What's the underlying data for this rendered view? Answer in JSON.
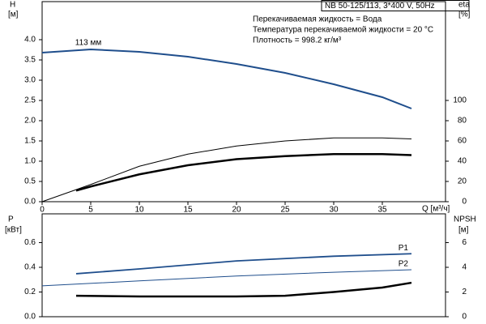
{
  "chart_data": [
    {
      "type": "line",
      "title": "NB 50-125/113, 3*400 V, 50Hz",
      "annotations": [
        "Перекачиваемая жидкость = Вода",
        "Температура перекачиваемой жидкости = 20 °C",
        "Плотность = 998.2 кг/м³"
      ],
      "ylabel": "H",
      "yunit": "[м]",
      "y2label": "eta",
      "y2unit": "[%]",
      "xlabel": "Q [м³/ч]",
      "xlim": [
        0,
        41.5
      ],
      "xticks": [
        0,
        5,
        10,
        15,
        20,
        25,
        30,
        35
      ],
      "ylim": [
        0,
        4.94
      ],
      "yticks": [
        {
          "value": 0,
          "label": "0.0"
        },
        0.5,
        {
          "value": 1,
          "label": "1.0"
        },
        1.5,
        {
          "value": 2,
          "label": "2.0"
        },
        2.5,
        {
          "value": 3,
          "label": "3.0"
        },
        3.5,
        {
          "value": 4,
          "label": "4.0"
        }
      ],
      "y2lim": [
        0,
        197.6
      ],
      "y2ticks": [
        0,
        20,
        40,
        60,
        80,
        100
      ],
      "grid": false,
      "series": [
        {
          "name": "113 мм",
          "color": "#1f4e8c",
          "width": 2,
          "x": [
            0,
            5,
            10,
            15,
            20,
            25,
            30,
            35,
            38
          ],
          "values": [
            3.68,
            3.76,
            3.7,
            3.58,
            3.4,
            3.18,
            2.9,
            2.58,
            2.3
          ]
        },
        {
          "color": "#000000",
          "width": 1,
          "axis": "y2",
          "x": [
            0,
            5,
            10,
            15,
            20,
            25,
            30,
            35,
            38
          ],
          "values": [
            0,
            17,
            35,
            47,
            55,
            60,
            63,
            63,
            62
          ]
        },
        {
          "color": "#000000",
          "width": 2.5,
          "axis": "y2",
          "x": [
            3.5,
            5,
            10,
            15,
            20,
            25,
            30,
            35,
            38
          ],
          "values": [
            11,
            15,
            27,
            36,
            42,
            45,
            47,
            47,
            46
          ]
        }
      ]
    },
    {
      "type": "line",
      "ylabel": "P",
      "yunit": "[кВт]",
      "y2label": "NPSH",
      "y2unit": "[м]",
      "xlim": [
        0,
        41.5
      ],
      "ylim": [
        0,
        0.833
      ],
      "yticks": [
        {
          "value": 0,
          "label": "0.0"
        },
        0.2,
        0.4,
        0.6
      ],
      "y2lim": [
        0,
        8.33
      ],
      "y2ticks": [
        0,
        2,
        4,
        6
      ],
      "grid": false,
      "series": [
        {
          "name": "P1",
          "color": "#1f4e8c",
          "width": 1.8,
          "x": [
            3.5,
            10,
            20,
            30,
            38
          ],
          "values": [
            0.348,
            0.387,
            0.452,
            0.49,
            0.51
          ]
        },
        {
          "name": "P2",
          "color": "#1f4e8c",
          "width": 1,
          "x": [
            0,
            10,
            20,
            30,
            38
          ],
          "values": [
            0.25,
            0.29,
            0.33,
            0.36,
            0.38
          ]
        },
        {
          "color": "#000000",
          "width": 2.5,
          "axis": "y2",
          "x": [
            3.5,
            10,
            20,
            25,
            30,
            35,
            38
          ],
          "values": [
            1.7,
            1.64,
            1.64,
            1.7,
            2.0,
            2.36,
            2.75
          ]
        }
      ]
    }
  ]
}
